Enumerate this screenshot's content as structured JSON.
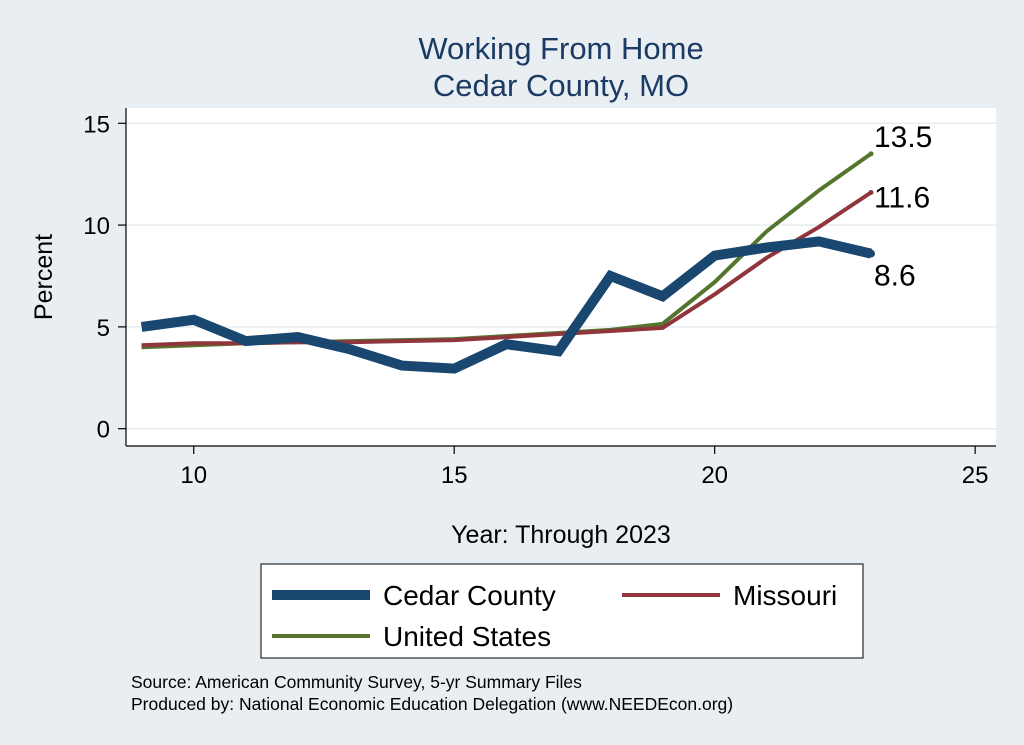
{
  "chart_data": {
    "type": "line",
    "title": "Working From Home",
    "subtitle": "Cedar County, MO",
    "xlabel": "Year: Through 2023",
    "ylabel": "Percent",
    "xlim": [
      8.7,
      25.4
    ],
    "ylim": [
      -0.85,
      15.75
    ],
    "xticks": [
      10,
      15,
      20,
      25
    ],
    "yticks": [
      0,
      5,
      10,
      15
    ],
    "grid": true,
    "legend_position": "bottom",
    "x": [
      9,
      10,
      11,
      12,
      13,
      14,
      15,
      16,
      17,
      18,
      19,
      20,
      21,
      22,
      23
    ],
    "series": [
      {
        "name": "Cedar County",
        "color": "#1a476f",
        "values": [
          5.0,
          5.35,
          4.3,
          4.5,
          3.9,
          3.1,
          2.95,
          4.15,
          3.8,
          7.5,
          6.5,
          8.5,
          8.9,
          9.2,
          8.6
        ],
        "end_label": "8.6"
      },
      {
        "name": "Missouri",
        "color": "#90353b",
        "values": [
          4.1,
          4.2,
          4.2,
          4.25,
          4.25,
          4.3,
          4.35,
          4.5,
          4.65,
          4.8,
          4.95,
          6.6,
          8.4,
          9.9,
          11.6
        ],
        "end_label": "11.6"
      },
      {
        "name": "United States",
        "color": "#55752f",
        "values": [
          4.0,
          4.1,
          4.2,
          4.25,
          4.3,
          4.35,
          4.4,
          4.55,
          4.7,
          4.85,
          5.15,
          7.2,
          9.7,
          11.7,
          13.5
        ],
        "end_label": "13.5"
      }
    ],
    "notes": [
      "Source: American Community Survey, 5-yr Summary Files",
      "Produced by: National Economic Education Delegation (www.NEEDEcon.org)"
    ]
  }
}
